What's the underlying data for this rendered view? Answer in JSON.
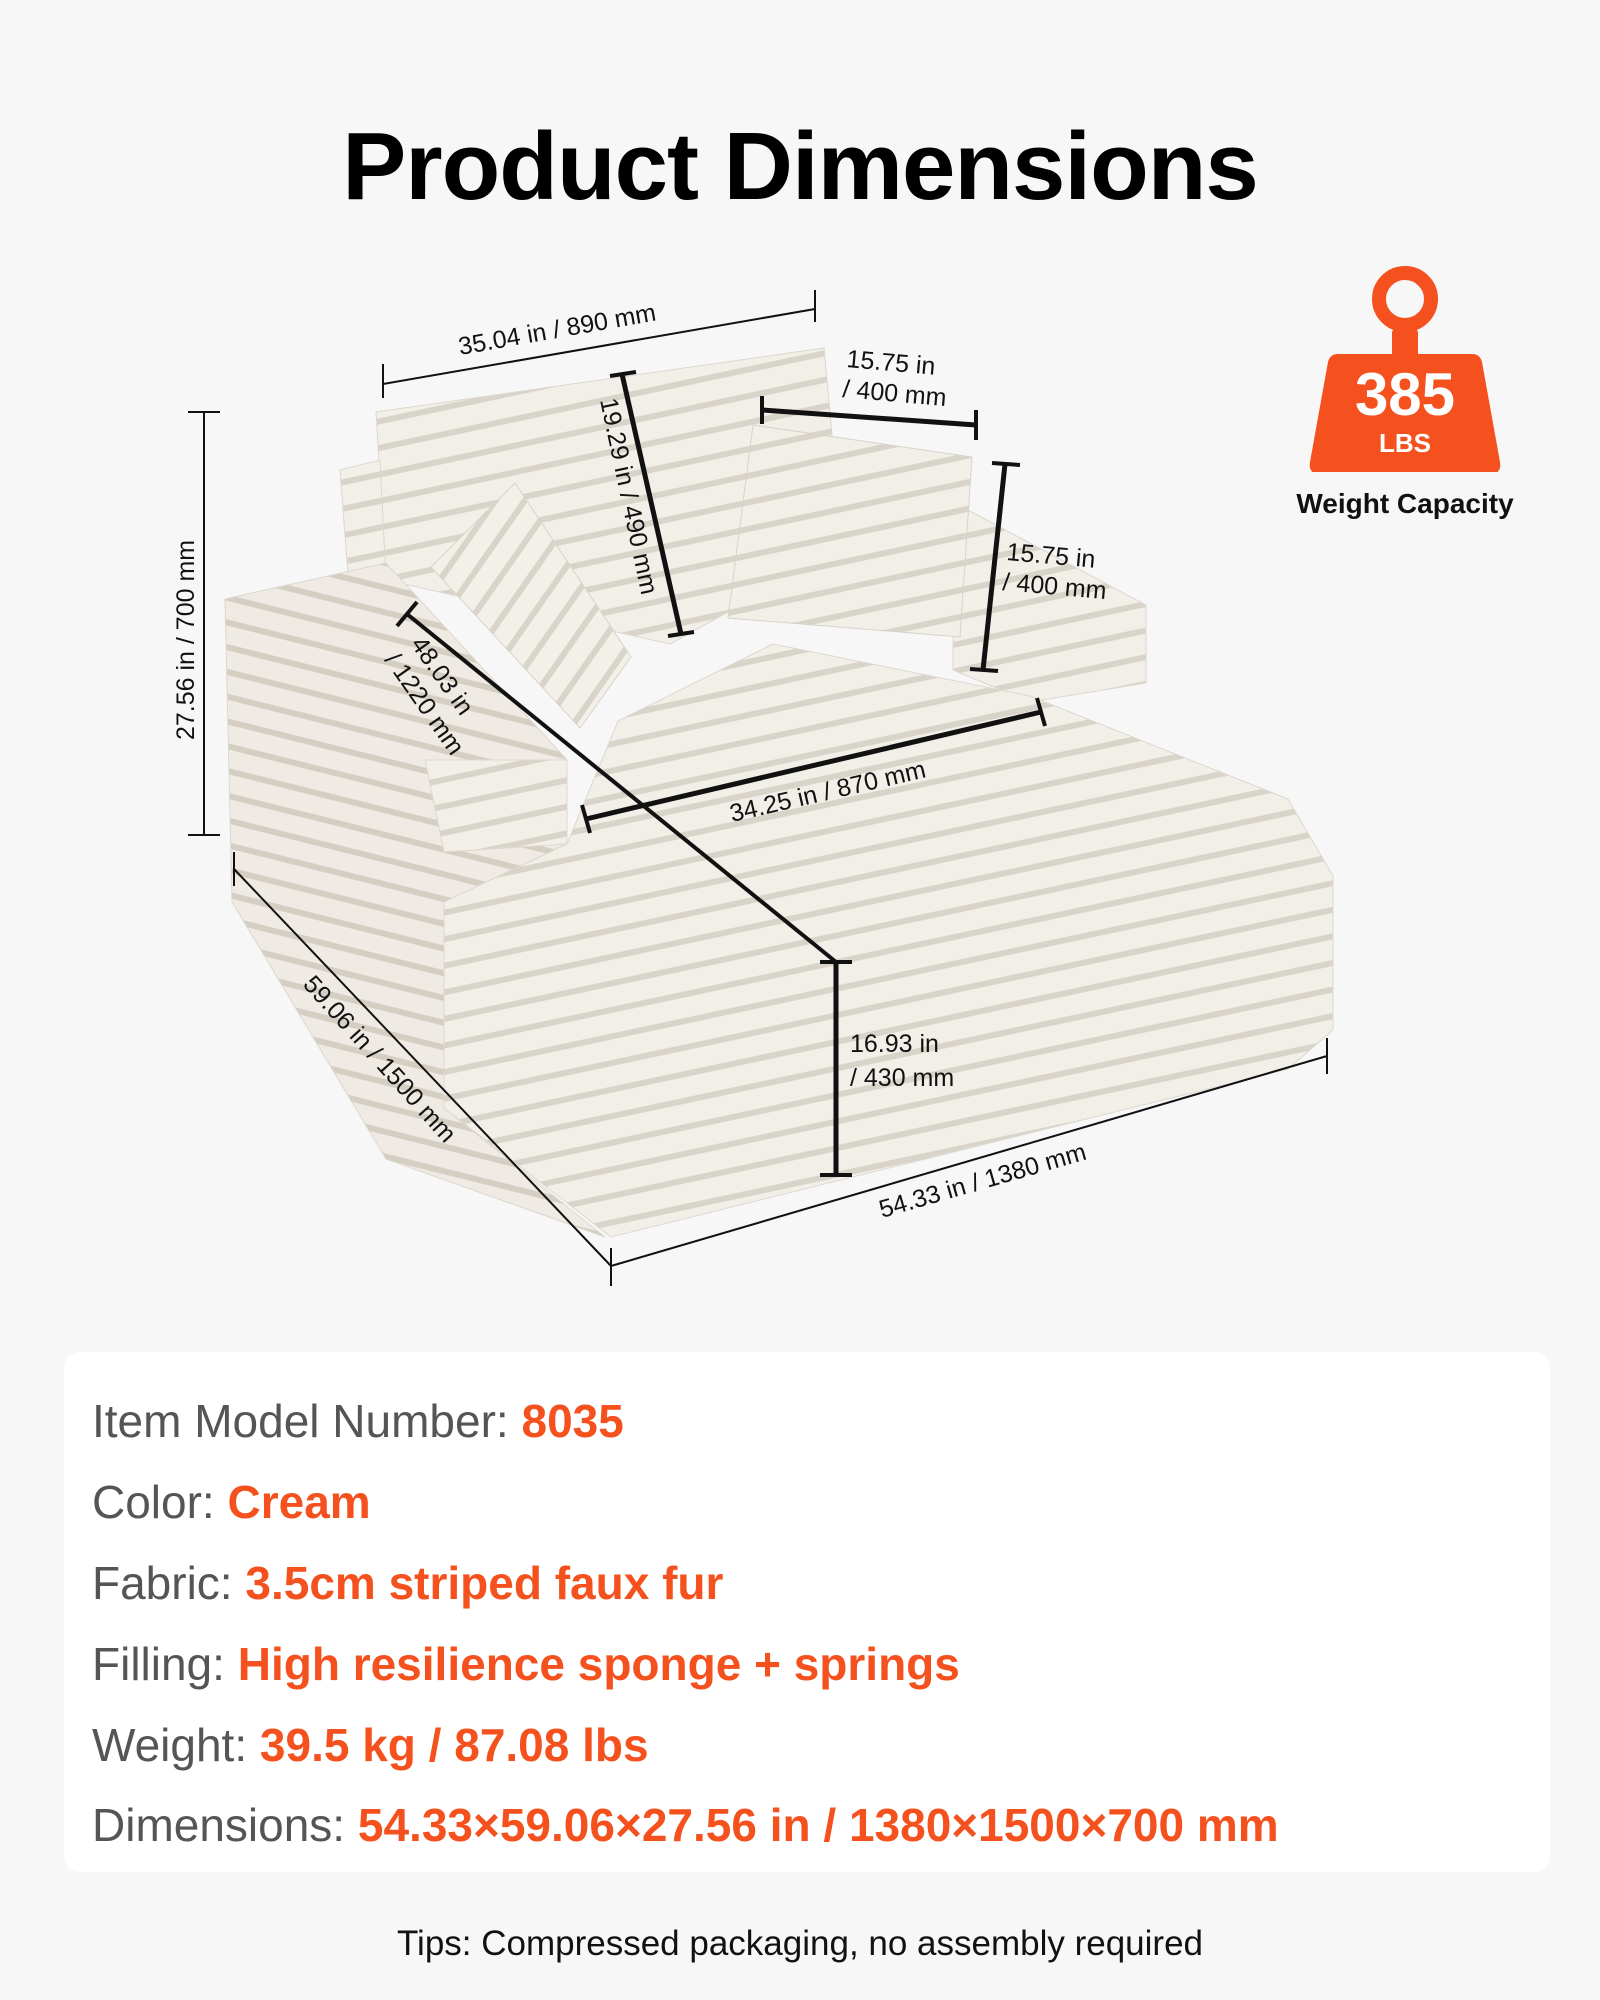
{
  "title": "Product Dimensions",
  "weight_capacity": {
    "value": "385",
    "unit": "LBS",
    "label": "Weight Capacity",
    "icon": "weight-icon",
    "color": "#f4511e"
  },
  "dimensions": {
    "back_width": "35.04 in / 890 mm",
    "pillow_width_in": "15.75 in",
    "pillow_width_mm": "/ 400 mm",
    "back_height": "19.29 in / 490 mm",
    "pillow_height_in": "15.75 in",
    "pillow_height_mm": "/ 400 mm",
    "total_height": "27.56 in / 700 mm",
    "seat_depth_in": "48.03 in",
    "seat_depth_mm": "/ 1220 mm",
    "seat_width": "34.25 in / 870 mm",
    "seat_height_in": "16.93 in",
    "seat_height_mm": "/ 430 mm",
    "total_width": "54.33 in / 1380 mm",
    "total_depth": "59.06 in / 1500 mm"
  },
  "specs": [
    {
      "label": "Item Model Number:",
      "value": "8035"
    },
    {
      "label": "Color:",
      "value": "Cream"
    },
    {
      "label": "Fabric:",
      "value": "3.5cm striped faux fur"
    },
    {
      "label": "Filling:",
      "value": "High resilience sponge + springs"
    },
    {
      "label": "Weight:",
      "value": "39.5 kg / 87.08 lbs"
    },
    {
      "label": "Dimensions:",
      "value": "54.33×59.06×27.56 in / 1380×1500×700 mm"
    }
  ],
  "tips": "Tips: Compressed packaging, no assembly required"
}
